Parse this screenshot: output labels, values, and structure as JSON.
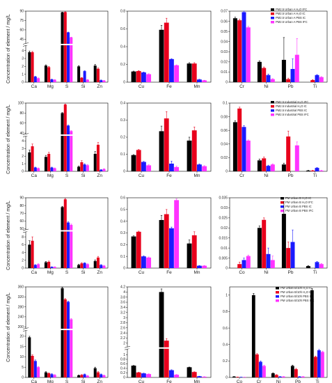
{
  "colors": {
    "series": [
      "#000000",
      "#e8001c",
      "#1a1aff",
      "#ff33ff"
    ]
  },
  "rows": [
    {
      "ylabel": "Concentration of element / mg/L",
      "legend": [
        "PM2.5 Urban A H₂O IFC",
        "PM2.5 Urban A H₂O IC",
        "PM2.5 Urban A PBS IC",
        "PM2.5 Urban A PBS IFC"
      ]
    },
    {
      "ylabel": "Concentration of element / mg/L",
      "legend": [
        "PM2.5 Industrial H₂O IFC",
        "PM2.5 Industrial H₂O IC",
        "PM2.5 Industrial PBS IC",
        "PM2.5 Industrial PBS IFC"
      ]
    },
    {
      "ylabel": "Concentration of element / mg/L",
      "legend": [
        "PM Urban B H₂O IC",
        "PM Urban B H₂O IFC",
        "PM Urban B PBS IC",
        "PM Urban B PBS IFC"
      ]
    },
    {
      "ylabel": "Concentration of element / mg/L",
      "legend": [
        "PM Urban B/10h H₂O IC",
        "PM Urban B/10h H₂O IFC",
        "PM Urban B/10h PBS IC",
        "PM Urban B/10h PBS IFC"
      ]
    }
  ],
  "chart_data": [
    {
      "type": "bar",
      "row": 0,
      "col": 0,
      "categories": [
        "Ca",
        "Mg",
        "S",
        "Si",
        "Zn"
      ],
      "yaxis": {
        "break": true,
        "low_max": 4.5,
        "high_min": 40,
        "high_max": 90,
        "low_ticks": [
          0,
          1,
          2,
          3,
          4
        ],
        "high_ticks": [
          45,
          60,
          75,
          90
        ]
      },
      "series": [
        {
          "values": [
            3.8,
            2.1,
            88,
            2.0,
            2.1
          ],
          "errors": [
            0.15,
            0.1,
            0.5,
            0.1,
            0.15
          ]
        },
        {
          "values": [
            3.8,
            1.9,
            88.5,
            0.55,
            1.7
          ],
          "errors": [
            0.1,
            0.1,
            0.4,
            0.05,
            0.1
          ]
        },
        {
          "values": [
            0.7,
            0.35,
            56,
            1.4,
            0.25
          ],
          "errors": [
            0.05,
            0.03,
            0.5,
            0.05,
            0.03
          ]
        },
        {
          "values": [
            0.5,
            0.3,
            48,
            0.3,
            0.2
          ],
          "errors": [
            0.04,
            0.03,
            0.5,
            0.03,
            0.03
          ]
        }
      ]
    },
    {
      "type": "bar",
      "row": 0,
      "col": 1,
      "categories": [
        "Cu",
        "Fe",
        "Mn"
      ],
      "ylim": [
        0,
        0.8
      ],
      "yticks": [
        0.0,
        0.2,
        0.4,
        0.6,
        0.8
      ],
      "series": [
        {
          "values": [
            0.12,
            0.59,
            0.21
          ],
          "errors": [
            0.005,
            0.05,
            0.01
          ]
        },
        {
          "values": [
            0.125,
            0.67,
            0.21
          ],
          "errors": [
            0.005,
            0.05,
            0.01
          ]
        },
        {
          "values": [
            0.11,
            0.26,
            0.03
          ],
          "errors": [
            0.005,
            0.005,
            0.003
          ]
        },
        {
          "values": [
            0.09,
            0.19,
            0.02
          ],
          "errors": [
            0.005,
            0.005,
            0.002
          ]
        }
      ]
    },
    {
      "type": "bar",
      "row": 0,
      "col": 2,
      "categories": [
        "Cr",
        "Ni",
        "Pb",
        "Ti"
      ],
      "ylim": [
        0,
        0.07
      ],
      "yticks": [
        0.0,
        0.01,
        0.02,
        0.03,
        0.04,
        0.05,
        0.06,
        0.07
      ],
      "series": [
        {
          "values": [
            0.063,
            0.02,
            0.022,
            0.0
          ],
          "errors": [
            0.001,
            0.001,
            0.022,
            0.0
          ]
        },
        {
          "values": [
            0.061,
            0.014,
            0.003,
            0.002
          ],
          "errors": [
            0.001,
            0.001,
            0.001,
            0.0005
          ]
        },
        {
          "values": [
            0.069,
            0.007,
            0.013,
            0.007
          ],
          "errors": [
            0.001,
            0.001,
            0.01,
            0.0005
          ]
        },
        {
          "values": [
            0.054,
            0.003,
            0.027,
            0.005
          ],
          "errors": [
            0.001,
            0.0005,
            0.016,
            0.0005
          ]
        }
      ]
    },
    {
      "type": "bar",
      "row": 1,
      "col": 0,
      "categories": [
        "Ca",
        "Mg",
        "S",
        "Si",
        "Zn"
      ],
      "yaxis": {
        "break": true,
        "low_max": 4.5,
        "high_min": 40,
        "high_max": 100,
        "low_ticks": [
          0,
          1,
          2,
          3,
          4
        ],
        "high_ticks": [
          40,
          60,
          80,
          100
        ]
      },
      "series": [
        {
          "values": [
            2.5,
            1.9,
            80,
            0.6,
            2.3
          ],
          "errors": [
            0.3,
            0.2,
            1.0,
            0.1,
            0.3
          ]
        },
        {
          "values": [
            3.3,
            2.3,
            97,
            1.2,
            3.5
          ],
          "errors": [
            0.3,
            0.2,
            1.0,
            0.2,
            0.3
          ]
        },
        {
          "values": [
            0.5,
            0.5,
            55,
            0.9,
            0.2
          ],
          "errors": [
            0.05,
            0.05,
            1.0,
            0.1,
            0.05
          ]
        },
        {
          "values": [
            0.4,
            0.4,
            44,
            0.8,
            0.3
          ],
          "errors": [
            0.05,
            0.05,
            1.0,
            0.1,
            0.05
          ]
        }
      ]
    },
    {
      "type": "bar",
      "row": 1,
      "col": 1,
      "categories": [
        "Cu",
        "Fe",
        "Mn"
      ],
      "ylim": [
        0,
        0.4
      ],
      "yticks": [
        0.0,
        0.1,
        0.2,
        0.3,
        0.4
      ],
      "series": [
        {
          "values": [
            0.095,
            0.235,
            0.18
          ],
          "errors": [
            0.003,
            0.03,
            0.02
          ]
        },
        {
          "values": [
            0.125,
            0.31,
            0.24
          ],
          "errors": [
            0.003,
            0.04,
            0.02
          ]
        },
        {
          "values": [
            0.055,
            0.045,
            0.04
          ],
          "errors": [
            0.003,
            0.015,
            0.003
          ]
        },
        {
          "values": [
            0.035,
            0.025,
            0.03
          ],
          "errors": [
            0.003,
            0.005,
            0.003
          ]
        }
      ]
    },
    {
      "type": "bar",
      "row": 1,
      "col": 2,
      "categories": [
        "Cr",
        "Ni",
        "Pb",
        "Ti"
      ],
      "ylim": [
        0,
        0.1
      ],
      "yticks": [
        0.0,
        0.02,
        0.04,
        0.06,
        0.08,
        0.1
      ],
      "series": [
        {
          "values": [
            0.072,
            0.016,
            0.01,
            0.001
          ],
          "errors": [
            0.002,
            0.002,
            0.002,
            0.0005
          ]
        },
        {
          "values": [
            0.092,
            0.019,
            0.051,
            0.001
          ],
          "errors": [
            0.002,
            0.002,
            0.008,
            0.0005
          ]
        },
        {
          "values": [
            0.065,
            0.008,
            0.0,
            0.005
          ],
          "errors": [
            0.002,
            0.001,
            0.0,
            0.0005
          ]
        },
        {
          "values": [
            0.045,
            0.01,
            0.038,
            0.001
          ],
          "errors": [
            0.001,
            0.001,
            0.005,
            0.0005
          ]
        }
      ]
    },
    {
      "type": "bar",
      "row": 2,
      "col": 0,
      "categories": [
        "Ca",
        "Mg",
        "S",
        "Si",
        "Zn"
      ],
      "yaxis": {
        "break": true,
        "low_max": 9,
        "high_min": 50,
        "high_max": 90,
        "low_ticks": [
          0,
          2,
          4,
          6,
          8
        ],
        "high_ticks": [
          50,
          60,
          70,
          80,
          90
        ]
      },
      "series": [
        {
          "values": [
            6.0,
            1.5,
            78,
            0.8,
            1.8
          ],
          "errors": [
            1.0,
            0.2,
            1.0,
            0.2,
            0.3
          ]
        },
        {
          "values": [
            7.0,
            1.6,
            88,
            1.2,
            2.7
          ],
          "errors": [
            1.0,
            0.2,
            1.0,
            0.2,
            0.3
          ]
        },
        {
          "values": [
            0.8,
            0.3,
            58,
            1.3,
            0.8
          ],
          "errors": [
            0.1,
            0.05,
            1.0,
            0.1,
            0.1
          ]
        },
        {
          "values": [
            1.0,
            0.3,
            55,
            1.0,
            0.6
          ],
          "errors": [
            0.1,
            0.05,
            1.0,
            0.1,
            0.1
          ]
        }
      ]
    },
    {
      "type": "bar",
      "row": 2,
      "col": 1,
      "categories": [
        "Cu",
        "Fe",
        "Mn"
      ],
      "ylim": [
        0,
        0.6
      ],
      "yticks": [
        0.0,
        0.1,
        0.2,
        0.3,
        0.4,
        0.5,
        0.6
      ],
      "series": [
        {
          "values": [
            0.27,
            0.41,
            0.21
          ],
          "errors": [
            0.005,
            0.04,
            0.03
          ]
        },
        {
          "values": [
            0.31,
            0.46,
            0.28
          ],
          "errors": [
            0.005,
            0.04,
            0.03
          ]
        },
        {
          "values": [
            0.1,
            0.34,
            0.02
          ],
          "errors": [
            0.005,
            0.01,
            0.002
          ]
        },
        {
          "values": [
            0.09,
            0.58,
            0.02
          ],
          "errors": [
            0.005,
            0.01,
            0.002
          ]
        }
      ]
    },
    {
      "type": "bar",
      "row": 2,
      "col": 2,
      "categories": [
        "Co",
        "Ni",
        "Pb",
        "Ti"
      ],
      "ylim": [
        0,
        0.035
      ],
      "yticks": [
        0.0,
        0.005,
        0.01,
        0.015,
        0.02,
        0.025,
        0.03,
        0.035
      ],
      "series": [
        {
          "values": [
            0.0,
            0.02,
            0.027,
            0.001
          ],
          "errors": [
            0.0,
            0.001,
            0.006,
            0.0002
          ]
        },
        {
          "values": [
            0.002,
            0.024,
            0.01,
            0.0
          ],
          "errors": [
            0.001,
            0.001,
            0.003,
            0.0
          ]
        },
        {
          "values": [
            0.004,
            0.007,
            0.013,
            0.003
          ],
          "errors": [
            0.001,
            0.003,
            0.006,
            0.0003
          ]
        },
        {
          "values": [
            0.006,
            0.004,
            0.0,
            0.002
          ],
          "errors": [
            0.0005,
            0.002,
            0.0,
            0.0003
          ]
        }
      ]
    },
    {
      "type": "bar",
      "row": 3,
      "col": 0,
      "categories": [
        "Ca",
        "Mg",
        "S",
        "Si",
        "Zn"
      ],
      "yaxis": {
        "break": true,
        "low_max": 22,
        "high_min": 200,
        "high_max": 360,
        "low_ticks": [
          0,
          5,
          10,
          15,
          20
        ],
        "high_ticks": [
          200,
          240,
          280,
          320,
          360
        ]
      },
      "series": [
        {
          "values": [
            19.5,
            2.5,
            355,
            1.0,
            4.5
          ],
          "errors": [
            0.5,
            0.3,
            3.0,
            0.2,
            0.5
          ]
        },
        {
          "values": [
            10.5,
            2.0,
            310,
            1.2,
            2.5
          ],
          "errors": [
            0.5,
            0.2,
            3.0,
            0.2,
            0.3
          ]
        },
        {
          "values": [
            8.0,
            1.6,
            300,
            1.5,
            1.5
          ],
          "errors": [
            0.5,
            0.2,
            3.0,
            0.2,
            0.2
          ]
        },
        {
          "values": [
            5.0,
            1.2,
            230,
            0.8,
            1.0
          ],
          "errors": [
            0.3,
            0.2,
            3.0,
            0.2,
            0.2
          ]
        }
      ]
    },
    {
      "type": "bar",
      "row": 3,
      "col": 1,
      "categories": [
        "Cu",
        "Fe",
        "Mn"
      ],
      "ylim": [
        0,
        4.2
      ],
      "axis_break": {
        "at": 1.2,
        "gap": 0.05
      },
      "yticks": [
        0.0,
        0.2,
        0.4,
        0.6,
        0.8,
        1.0,
        2.0,
        2.2,
        2.4,
        2.6,
        2.8,
        3.0,
        3.2,
        3.4,
        3.6,
        3.8,
        4.0,
        4.2
      ],
      "series": [
        {
          "values": [
            0.52,
            4.0,
            0.45
          ],
          "errors": [
            0.01,
            0.12,
            0.01
          ]
        },
        {
          "values": [
            0.22,
            2.1,
            0.24
          ],
          "errors": [
            0.01,
            0.08,
            0.01
          ]
        },
        {
          "values": [
            0.18,
            0.32,
            0.05
          ],
          "errors": [
            0.01,
            0.02,
            0.005
          ]
        },
        {
          "values": [
            0.15,
            0.12,
            0.03
          ],
          "errors": [
            0.01,
            0.01,
            0.005
          ]
        }
      ]
    },
    {
      "type": "bar",
      "row": 3,
      "col": 2,
      "categories": [
        "Co",
        "Cr",
        "Ni",
        "Pb",
        "Ti"
      ],
      "ylim": [
        0,
        1.1
      ],
      "yticks": [
        0.0,
        0.2,
        0.4,
        0.6,
        0.8,
        1.0
      ],
      "series": [
        {
          "values": [
            0.01,
            1.0,
            0.05,
            0.14,
            1.06
          ],
          "errors": [
            0.002,
            0.02,
            0.005,
            0.01,
            0.02
          ]
        },
        {
          "values": [
            0.005,
            0.28,
            0.03,
            0.1,
            0.25
          ],
          "errors": [
            0.001,
            0.01,
            0.005,
            0.01,
            0.01
          ]
        },
        {
          "values": [
            0.004,
            0.19,
            0.01,
            0.01,
            0.33
          ],
          "errors": [
            0.001,
            0.01,
            0.002,
            0.002,
            0.01
          ]
        },
        {
          "values": [
            0.003,
            0.14,
            0.01,
            0.01,
            0.31
          ],
          "errors": [
            0.001,
            0.01,
            0.002,
            0.002,
            0.01
          ]
        }
      ]
    }
  ]
}
